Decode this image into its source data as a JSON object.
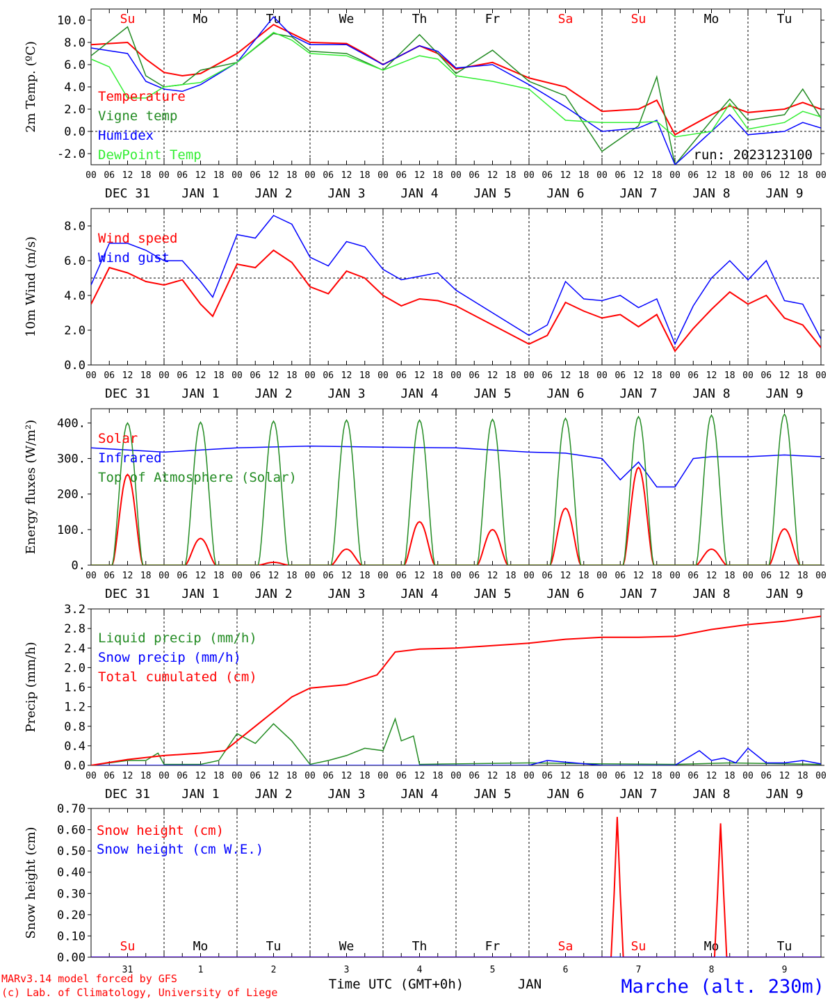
{
  "colors": {
    "red": "#ff0000",
    "green": "#228b22",
    "blue": "#0000ff",
    "lightgreen": "#33ee33",
    "grid": "#000000",
    "purple": "#8800aa"
  },
  "time_axis": {
    "hour_ticks": [
      "00",
      "06",
      "12",
      "18"
    ],
    "date_labels": [
      "DEC 31",
      "JAN  1",
      "JAN  2",
      "JAN  3",
      "JAN  4",
      "JAN  5",
      "JAN  6",
      "JAN  7",
      "JAN  8",
      "JAN  9"
    ],
    "weekdays": [
      "Su",
      "Mo",
      "Tu",
      "We",
      "Th",
      "Fr",
      "Sa",
      "Su",
      "Mo",
      "Tu"
    ],
    "weekday_colors": [
      "red",
      "black",
      "black",
      "black",
      "black",
      "black",
      "red",
      "red",
      "black",
      "black"
    ],
    "day_numbers": [
      "31",
      "1",
      "2",
      "3",
      "4",
      "5",
      "6",
      "7",
      "8",
      "9"
    ],
    "bottom_label": "Time UTC (GMT+0h)",
    "month_label": "JAN"
  },
  "footer": {
    "credit_line1": "MARv3.14 model forced by GFS",
    "credit_line2": "(c) Lab. of Climatology, University of Liege",
    "station": "Marche (alt. 230m)"
  },
  "chart_data": [
    {
      "id": "temperature",
      "type": "line",
      "ylabel": "2m Temp. (ºC)",
      "ylim": [
        -3,
        11
      ],
      "yticks": [
        "-2.0",
        "0.0",
        "2.0",
        "4.0",
        "6.0",
        "8.0",
        "10.0"
      ],
      "ytick_values": [
        -2,
        0,
        2,
        4,
        6,
        8,
        10
      ],
      "hline": 0,
      "run_label": "run: 2023123100",
      "x_unit": "hours since Dec 31 00 UTC",
      "series": [
        {
          "name": "Temperature",
          "color": "red",
          "x": [
            0,
            12,
            18,
            24,
            30,
            36,
            48,
            60,
            66,
            72,
            84,
            90,
            96,
            108,
            114,
            120,
            132,
            144,
            156,
            168,
            180,
            186,
            192,
            204,
            210,
            216,
            228,
            234,
            240
          ],
          "values": [
            7.8,
            8.0,
            6.5,
            5.3,
            5.0,
            5.2,
            7.0,
            9.6,
            8.8,
            8.0,
            7.9,
            7.0,
            6.0,
            7.7,
            7.0,
            5.6,
            6.2,
            4.8,
            4.0,
            1.8,
            2.0,
            2.8,
            -0.3,
            1.5,
            2.3,
            1.7,
            2.0,
            2.6,
            2.0
          ]
        },
        {
          "name": "Vigne temp",
          "color": "green",
          "x": [
            0,
            12,
            18,
            24,
            30,
            36,
            48,
            60,
            66,
            72,
            84,
            96,
            108,
            114,
            120,
            132,
            144,
            156,
            168,
            180,
            186,
            192,
            204,
            210,
            216,
            228,
            234,
            240
          ],
          "values": [
            6.8,
            9.4,
            5.0,
            4.0,
            4.2,
            5.5,
            6.2,
            8.8,
            8.5,
            7.2,
            7.0,
            5.5,
            8.7,
            7.0,
            5.2,
            7.3,
            4.5,
            3.2,
            -1.8,
            0.5,
            4.9,
            -3.0,
            1.0,
            2.9,
            1.0,
            1.5,
            3.8,
            1.2
          ]
        },
        {
          "name": "Humidex",
          "color": "blue",
          "x": [
            0,
            12,
            18,
            24,
            30,
            36,
            48,
            60,
            66,
            72,
            84,
            96,
            108,
            114,
            120,
            132,
            144,
            156,
            168,
            180,
            186,
            192,
            204,
            210,
            216,
            228,
            234,
            240
          ],
          "values": [
            7.5,
            7.0,
            4.5,
            3.8,
            3.6,
            4.2,
            6.2,
            10.3,
            8.6,
            7.8,
            7.8,
            6.0,
            7.7,
            7.2,
            5.7,
            6.0,
            4.2,
            2.2,
            0.0,
            0.3,
            1.0,
            -3.0,
            0.0,
            1.5,
            -0.3,
            0.0,
            0.8,
            0.3
          ]
        },
        {
          "name": "DewPoint Temp",
          "color": "lightgreen",
          "x": [
            0,
            6,
            12,
            18,
            24,
            30,
            36,
            48,
            60,
            66,
            72,
            84,
            96,
            108,
            114,
            120,
            132,
            144,
            156,
            168,
            180,
            186,
            192,
            204,
            210,
            216,
            228,
            234,
            240
          ],
          "values": [
            6.5,
            5.8,
            3.0,
            3.0,
            4.0,
            4.2,
            4.4,
            6.2,
            8.9,
            8.2,
            7.0,
            6.8,
            5.5,
            6.8,
            6.5,
            5.0,
            4.5,
            3.8,
            1.0,
            0.8,
            0.8,
            0.9,
            -0.5,
            0.0,
            2.5,
            0.2,
            0.8,
            1.8,
            1.3
          ]
        }
      ]
    },
    {
      "id": "wind",
      "type": "line",
      "ylabel": "10m Wind (m/s)",
      "ylim": [
        0,
        9
      ],
      "yticks": [
        "0.0",
        "2.0",
        "4.0",
        "6.0",
        "8.0"
      ],
      "ytick_values": [
        0,
        2,
        4,
        6,
        8
      ],
      "hline": 5,
      "series": [
        {
          "name": "Wind speed",
          "color": "red",
          "x": [
            0,
            6,
            12,
            18,
            24,
            30,
            36,
            40,
            48,
            54,
            60,
            66,
            72,
            78,
            84,
            90,
            96,
            102,
            108,
            114,
            120,
            132,
            144,
            150,
            156,
            162,
            168,
            174,
            180,
            186,
            192,
            198,
            204,
            210,
            216,
            222,
            228,
            234,
            240
          ],
          "values": [
            3.5,
            5.6,
            5.3,
            4.8,
            4.6,
            4.9,
            3.5,
            2.8,
            5.8,
            5.6,
            6.6,
            5.9,
            4.5,
            4.1,
            5.4,
            5.0,
            4.0,
            3.4,
            3.8,
            3.7,
            3.4,
            2.3,
            1.2,
            1.7,
            3.6,
            3.1,
            2.7,
            2.9,
            2.2,
            2.9,
            0.8,
            2.1,
            3.2,
            4.2,
            3.5,
            4.0,
            2.7,
            2.3,
            1.0
          ]
        },
        {
          "name": "Wind gust",
          "color": "blue",
          "x": [
            0,
            6,
            12,
            18,
            24,
            30,
            36,
            40,
            48,
            54,
            60,
            66,
            72,
            78,
            84,
            90,
            96,
            102,
            108,
            114,
            120,
            132,
            144,
            150,
            156,
            162,
            168,
            174,
            180,
            186,
            192,
            198,
            204,
            210,
            216,
            222,
            228,
            234,
            240
          ],
          "values": [
            4.6,
            7.0,
            7.0,
            6.6,
            6.0,
            6.0,
            4.8,
            3.9,
            7.5,
            7.3,
            8.6,
            8.1,
            6.2,
            5.7,
            7.1,
            6.8,
            5.5,
            4.9,
            5.1,
            5.3,
            4.3,
            3.0,
            1.7,
            2.3,
            4.8,
            3.8,
            3.7,
            4.0,
            3.3,
            3.8,
            1.2,
            3.4,
            5.0,
            6.0,
            4.9,
            6.0,
            3.7,
            3.5,
            1.5
          ]
        }
      ]
    },
    {
      "id": "energy",
      "type": "line",
      "ylabel": "Energy fluxes (W/m²)",
      "ylim": [
        0,
        440
      ],
      "yticks": [
        "0.",
        "100.",
        "200.",
        "300.",
        "400."
      ],
      "ytick_values": [
        0,
        100,
        200,
        300,
        400
      ],
      "series": [
        {
          "name": "Solar",
          "color": "red",
          "peaks": [
            255,
            75,
            8,
            45,
            122,
            100,
            160,
            275,
            45,
            102
          ]
        },
        {
          "name": "Infrared",
          "color": "blue",
          "x": [
            0,
            24,
            48,
            72,
            96,
            120,
            144,
            156,
            168,
            174,
            180,
            186,
            192,
            198,
            204,
            216,
            228,
            240
          ],
          "values": [
            330,
            318,
            330,
            335,
            332,
            330,
            318,
            315,
            300,
            240,
            290,
            220,
            220,
            300,
            305,
            305,
            310,
            305
          ]
        },
        {
          "name": "Top of Atmosphere (Solar)",
          "color": "green",
          "peaks": [
            400,
            402,
            405,
            408,
            408,
            410,
            413,
            418,
            422,
            425
          ]
        }
      ]
    },
    {
      "id": "precip",
      "type": "line",
      "ylabel": "Precip (mm/h)",
      "ylim": [
        0,
        3.2
      ],
      "yticks": [
        "0.0",
        "0.4",
        "0.8",
        "1.2",
        "1.6",
        "2.0",
        "2.4",
        "2.8",
        "3.2"
      ],
      "ytick_values": [
        0,
        0.4,
        0.8,
        1.2,
        1.6,
        2.0,
        2.4,
        2.8,
        3.2
      ],
      "series": [
        {
          "name": "Liquid precip (mm/h)",
          "color": "green",
          "x": [
            0,
            6,
            12,
            18,
            22,
            24,
            36,
            42,
            48,
            54,
            60,
            66,
            72,
            78,
            84,
            90,
            96,
            100,
            102,
            106,
            108,
            120,
            144,
            168,
            192,
            210,
            240
          ],
          "values": [
            0,
            0.05,
            0.1,
            0.1,
            0.25,
            0.02,
            0.02,
            0.1,
            0.65,
            0.45,
            0.85,
            0.5,
            0.02,
            0.1,
            0.2,
            0.35,
            0.3,
            0.95,
            0.5,
            0.6,
            0.02,
            0.03,
            0.05,
            0.03,
            0.02,
            0.05,
            0.02
          ]
        },
        {
          "name": "Snow precip (mm/h)",
          "color": "blue",
          "x": [
            0,
            144,
            150,
            168,
            192,
            200,
            204,
            208,
            212,
            216,
            222,
            228,
            234,
            240
          ],
          "values": [
            0,
            0,
            0.1,
            0,
            0,
            0.3,
            0.1,
            0.15,
            0.05,
            0.35,
            0.05,
            0.05,
            0.1,
            0.03
          ]
        },
        {
          "name": "Total cumulated (cm)",
          "color": "red",
          "x": [
            0,
            12,
            24,
            36,
            44,
            48,
            60,
            66,
            72,
            84,
            94,
            96,
            100,
            108,
            120,
            132,
            144,
            156,
            168,
            180,
            192,
            204,
            216,
            228,
            240
          ],
          "values": [
            0.0,
            0.12,
            0.2,
            0.25,
            0.3,
            0.5,
            1.1,
            1.4,
            1.58,
            1.65,
            1.85,
            2.0,
            2.32,
            2.38,
            2.4,
            2.45,
            2.5,
            2.58,
            2.62,
            2.62,
            2.64,
            2.78,
            2.88,
            2.95,
            3.05
          ]
        }
      ]
    },
    {
      "id": "snow",
      "type": "line",
      "ylabel": "Snow height (cm)",
      "ylim": [
        0,
        0.7
      ],
      "yticks": [
        "0.00",
        "0.10",
        "0.20",
        "0.30",
        "0.40",
        "0.50",
        "0.60",
        "0.70"
      ],
      "ytick_values": [
        0,
        0.1,
        0.2,
        0.3,
        0.4,
        0.5,
        0.6,
        0.7
      ],
      "series": [
        {
          "name": "Snow height (cm)",
          "color": "red",
          "x": [
            0,
            171,
            172,
            173,
            174,
            175,
            205,
            206,
            207,
            208,
            209,
            240
          ],
          "values": [
            0,
            0,
            0.3,
            0.66,
            0.3,
            0,
            0,
            0.3,
            0.63,
            0.3,
            0,
            0
          ]
        },
        {
          "name": "Snow height (cm W.E.)",
          "color": "blue",
          "x": [
            0,
            240
          ],
          "values": [
            0,
            0
          ]
        }
      ]
    }
  ]
}
